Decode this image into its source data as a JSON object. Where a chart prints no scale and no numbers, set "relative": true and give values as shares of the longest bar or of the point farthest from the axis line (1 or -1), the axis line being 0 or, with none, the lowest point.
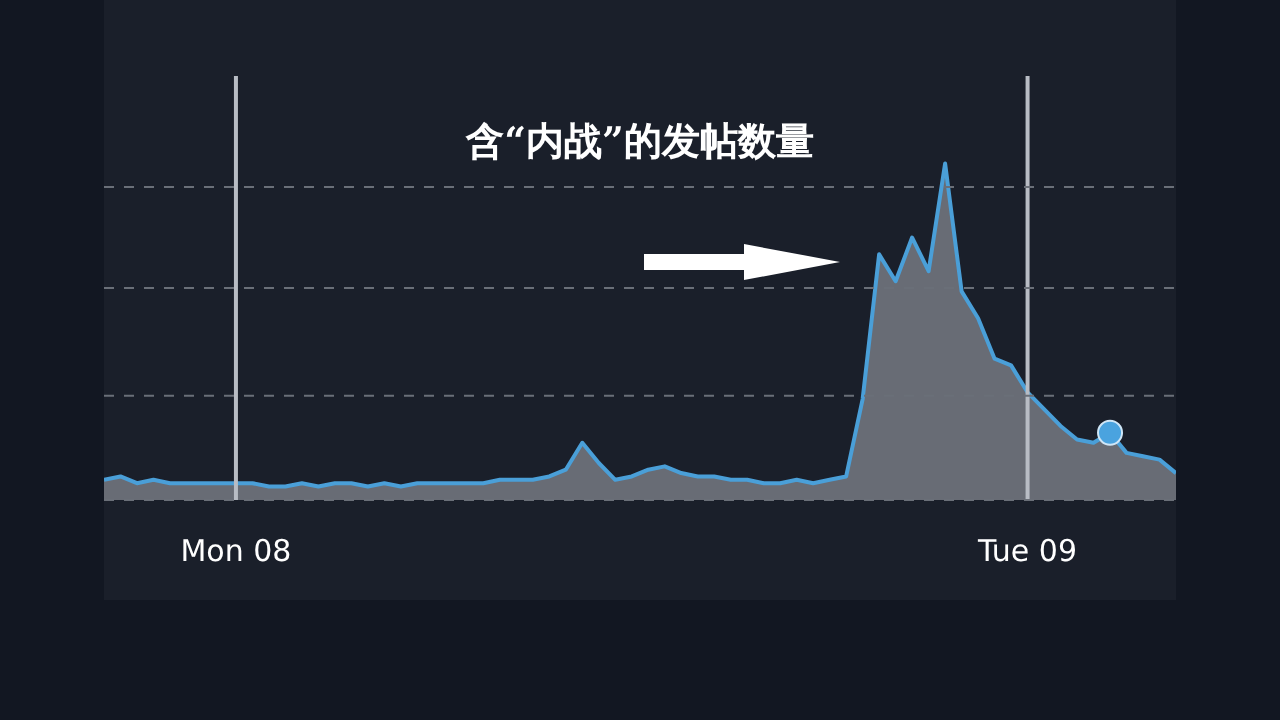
{
  "chart_data": {
    "type": "area",
    "title": "含“内战”的发帖数量",
    "relative": true,
    "grid": "x",
    "legend": false,
    "marker": "none",
    "categories": [
      null,
      null,
      null,
      null,
      null,
      null,
      null,
      null,
      "Mon 08",
      null,
      null,
      null,
      null,
      null,
      null,
      null,
      null,
      null,
      null,
      null,
      null,
      null,
      null,
      null,
      null,
      null,
      null,
      null,
      null,
      null,
      null,
      null,
      null,
      null,
      null,
      null,
      null,
      null,
      null,
      null,
      null,
      null,
      null,
      null,
      null,
      null,
      null,
      null,
      null,
      null,
      null,
      null,
      null,
      null,
      null,
      null,
      "Tue 09",
      null,
      null,
      null,
      null,
      null,
      null,
      null,
      null,
      null
    ],
    "series": [
      {
        "color": "#4a9fd8",
        "values": [
          0.06,
          0.07,
          0.05,
          0.06,
          0.05,
          0.05,
          0.05,
          0.05,
          0.05,
          0.05,
          0.04,
          0.04,
          0.05,
          0.04,
          0.05,
          0.05,
          0.04,
          0.05,
          0.04,
          0.05,
          0.05,
          0.05,
          0.05,
          0.05,
          0.06,
          0.06,
          0.06,
          0.07,
          0.09,
          0.17,
          0.11,
          0.06,
          0.07,
          0.09,
          0.1,
          0.08,
          0.07,
          0.07,
          0.06,
          0.06,
          0.05,
          0.05,
          0.06,
          0.05,
          0.06,
          0.07,
          0.3,
          0.73,
          0.65,
          0.78,
          0.68,
          1,
          0.62,
          0.54,
          0.42,
          0.4,
          0.32,
          0.27,
          0.22,
          0.18,
          0.17,
          0.2,
          0.14,
          0.13,
          0.12,
          0.08
        ]
      },
      {
        "type": "scatter",
        "color": "#4aa3df",
        "marker": "circle",
        "values": [
          null,
          null,
          null,
          null,
          null,
          null,
          null,
          null,
          null,
          null,
          null,
          null,
          null,
          null,
          null,
          null,
          null,
          null,
          null,
          null,
          null,
          null,
          null,
          null,
          null,
          null,
          null,
          null,
          null,
          null,
          null,
          null,
          null,
          null,
          null,
          null,
          null,
          null,
          null,
          null,
          null,
          null,
          null,
          null,
          null,
          null,
          null,
          null,
          null,
          null,
          null,
          null,
          null,
          null,
          null,
          null,
          null,
          null,
          null,
          null,
          null,
          0.2,
          null,
          null,
          null,
          null
        ]
      }
    ],
    "ref_lines": [
      {
        "axis": "y",
        "value": 0.31,
        "line_style": "dashed",
        "color": "#6a6f78"
      },
      {
        "axis": "y",
        "value": 0.63,
        "line_style": "dashed",
        "color": "#6a6f78"
      },
      {
        "axis": "y",
        "value": 0.93,
        "line_style": "dashed",
        "color": "#6a6f78"
      }
    ]
  }
}
